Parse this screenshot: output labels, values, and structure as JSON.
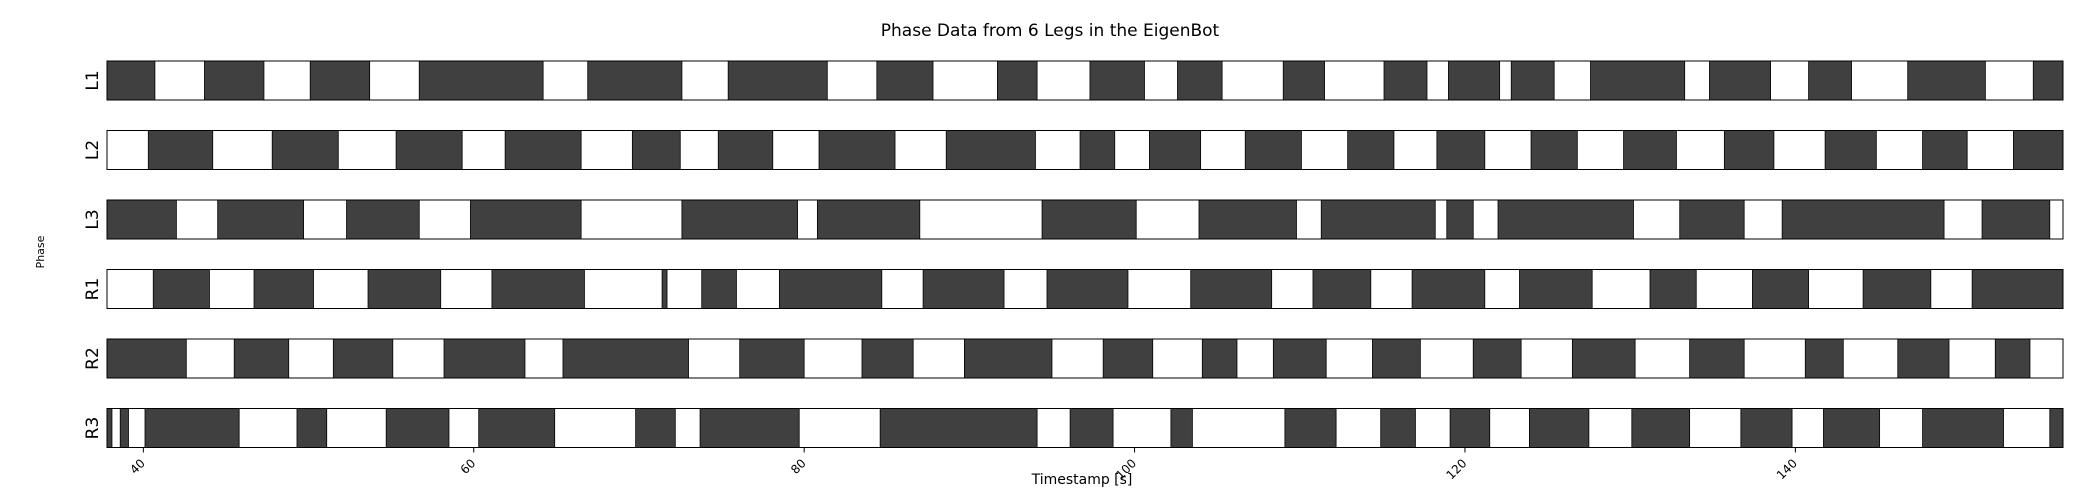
{
  "chart_data": {
    "type": "timeline",
    "title": "Phase Data from 6 Legs in the EigenBot",
    "xlabel": "Timestamp [s]",
    "ylabel": "Phase",
    "xlim": [
      37.8,
      156.2
    ],
    "xticks": [
      40,
      60,
      80,
      100,
      120,
      140
    ],
    "xtick_labels": [
      "40",
      "60",
      "80",
      "100",
      "120",
      "140"
    ],
    "colors": {
      "stance": "#404040",
      "swing": "#ffffff",
      "border": "#000000"
    },
    "rows": [
      {
        "name": "L1",
        "stance": [
          [
            37.8,
            40.7
          ],
          [
            43.7,
            47.3
          ],
          [
            50.1,
            53.7
          ],
          [
            56.7,
            64.2
          ],
          [
            66.9,
            72.6
          ],
          [
            75.4,
            81.4
          ],
          [
            84.4,
            87.8
          ],
          [
            91.7,
            94.1
          ],
          [
            97.3,
            100.6
          ],
          [
            102.6,
            105.3
          ],
          [
            109.0,
            111.5
          ],
          [
            115.1,
            117.7
          ],
          [
            119.0,
            122.1
          ],
          [
            122.8,
            125.4
          ],
          [
            127.6,
            133.3
          ],
          [
            134.8,
            138.5
          ],
          [
            140.8,
            143.4
          ],
          [
            146.8,
            151.5
          ],
          [
            154.4,
            156.2
          ]
        ]
      },
      {
        "name": "L2",
        "stance": [
          [
            40.3,
            44.2
          ],
          [
            47.8,
            51.8
          ],
          [
            55.3,
            59.3
          ],
          [
            61.9,
            66.5
          ],
          [
            69.6,
            72.5
          ],
          [
            74.8,
            78.1
          ],
          [
            80.9,
            85.5
          ],
          [
            88.6,
            94.0
          ],
          [
            96.7,
            98.8
          ],
          [
            100.9,
            104.0
          ],
          [
            106.7,
            110.1
          ],
          [
            112.9,
            115.7
          ],
          [
            118.3,
            121.2
          ],
          [
            124.0,
            126.8
          ],
          [
            129.6,
            132.8
          ],
          [
            135.7,
            138.7
          ],
          [
            141.8,
            144.9
          ],
          [
            147.7,
            150.4
          ],
          [
            153.2,
            156.2
          ]
        ]
      },
      {
        "name": "L3",
        "stance": [
          [
            37.8,
            42.0
          ],
          [
            44.5,
            49.7
          ],
          [
            52.3,
            56.7
          ],
          [
            59.8,
            66.5
          ],
          [
            72.6,
            79.6
          ],
          [
            80.8,
            87.0
          ],
          [
            94.4,
            100.1
          ],
          [
            103.9,
            109.8
          ],
          [
            111.3,
            118.2
          ],
          [
            118.9,
            120.5
          ],
          [
            122.0,
            130.2
          ],
          [
            133.0,
            136.9
          ],
          [
            139.2,
            149.0
          ],
          [
            151.3,
            155.4
          ]
        ]
      },
      {
        "name": "R1",
        "stance": [
          [
            40.6,
            44.0
          ],
          [
            46.7,
            50.3
          ],
          [
            53.6,
            58.0
          ],
          [
            61.1,
            66.7
          ],
          [
            71.4,
            71.7
          ],
          [
            73.8,
            75.9
          ],
          [
            78.5,
            84.7
          ],
          [
            87.2,
            92.1
          ],
          [
            94.7,
            99.6
          ],
          [
            103.4,
            108.3
          ],
          [
            110.8,
            114.3
          ],
          [
            116.8,
            121.2
          ],
          [
            123.3,
            127.7
          ],
          [
            131.2,
            134.0
          ],
          [
            137.4,
            140.8
          ],
          [
            144.1,
            148.2
          ],
          [
            150.7,
            156.2
          ]
        ]
      },
      {
        "name": "R2",
        "stance": [
          [
            37.8,
            42.6
          ],
          [
            45.5,
            48.8
          ],
          [
            51.5,
            55.1
          ],
          [
            58.2,
            63.1
          ],
          [
            65.4,
            73.0
          ],
          [
            76.1,
            80.0
          ],
          [
            83.5,
            86.6
          ],
          [
            89.7,
            95.0
          ],
          [
            98.1,
            101.1
          ],
          [
            104.1,
            106.2
          ],
          [
            108.4,
            111.6
          ],
          [
            114.4,
            117.3
          ],
          [
            120.5,
            123.4
          ],
          [
            126.5,
            130.3
          ],
          [
            133.6,
            136.9
          ],
          [
            140.6,
            142.9
          ],
          [
            146.2,
            149.3
          ],
          [
            152.1,
            154.2
          ]
        ]
      },
      {
        "name": "R3",
        "stance": [
          [
            37.8,
            38.1
          ],
          [
            38.6,
            39.1
          ],
          [
            40.1,
            45.8
          ],
          [
            49.3,
            51.1
          ],
          [
            54.7,
            58.5
          ],
          [
            60.3,
            64.9
          ],
          [
            69.8,
            72.2
          ],
          [
            73.7,
            79.7
          ],
          [
            84.6,
            94.1
          ],
          [
            96.1,
            98.7
          ],
          [
            102.2,
            103.5
          ],
          [
            109.1,
            112.2
          ],
          [
            114.9,
            117.0
          ],
          [
            119.1,
            121.5
          ],
          [
            123.9,
            127.5
          ],
          [
            130.1,
            133.6
          ],
          [
            136.7,
            139.8
          ],
          [
            141.7,
            145.1
          ],
          [
            147.7,
            152.6
          ],
          [
            155.4,
            156.2
          ]
        ]
      }
    ]
  }
}
